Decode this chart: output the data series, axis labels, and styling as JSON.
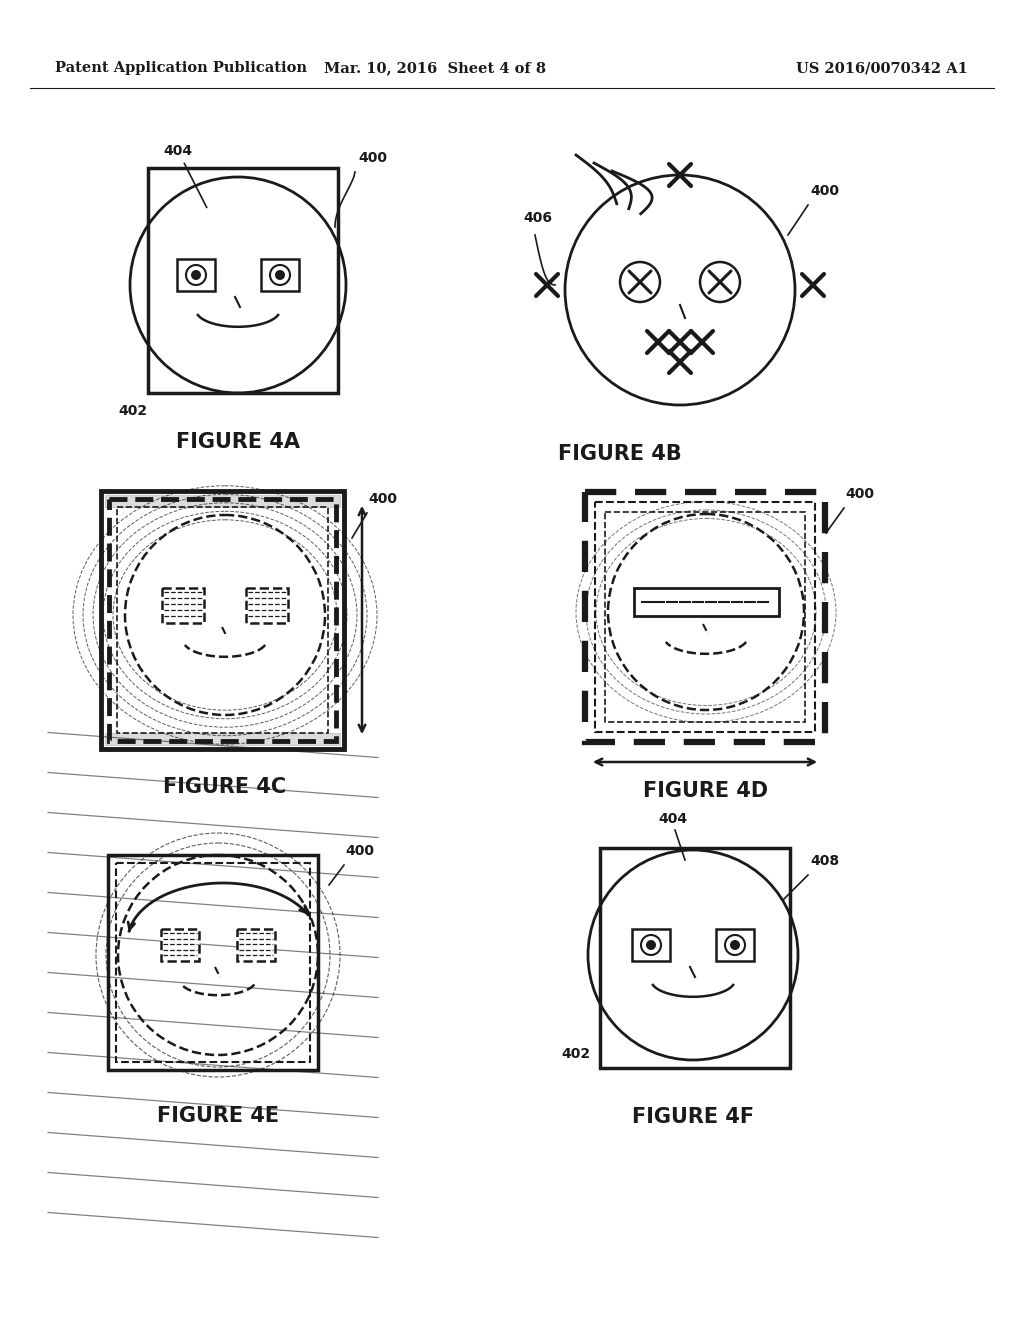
{
  "header_left": "Patent Application Publication",
  "header_mid": "Mar. 10, 2016  Sheet 4 of 8",
  "header_right": "US 2016/0070342 A1",
  "bg_color": "#ffffff",
  "line_color": "#1a1a1a"
}
